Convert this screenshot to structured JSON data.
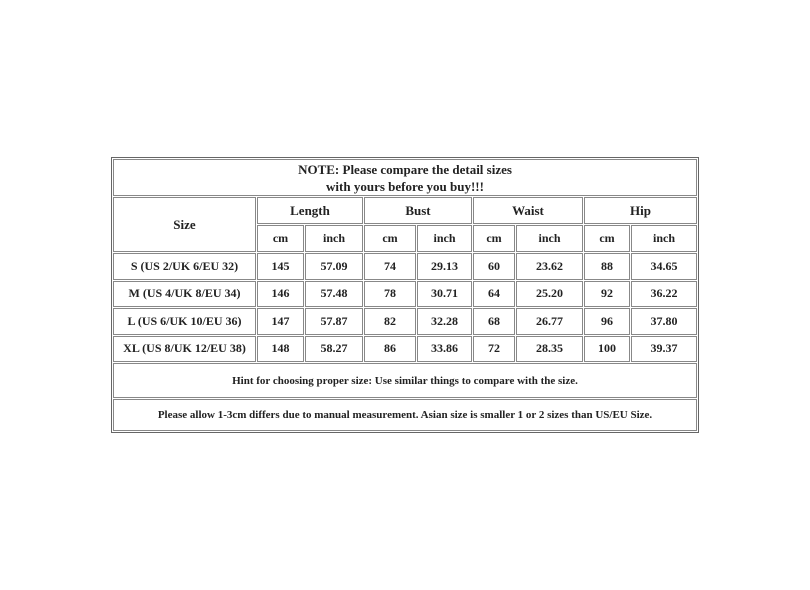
{
  "note": {
    "line1": "NOTE: Please compare the detail sizes",
    "line2": "with yours before you buy!!!"
  },
  "header": {
    "size": "Size",
    "groups": [
      "Length",
      "Bust",
      "Waist",
      "Hip"
    ],
    "units": [
      "cm",
      "inch",
      "cm",
      "inch",
      "cm",
      "inch",
      "cm",
      "inch"
    ]
  },
  "rows": [
    {
      "size": "S (US 2/UK 6/EU 32)",
      "values": [
        "145",
        "57.09",
        "74",
        "29.13",
        "60",
        "23.62",
        "88",
        "34.65"
      ]
    },
    {
      "size": "M  (US 4/UK 8/EU 34)",
      "values": [
        "146",
        "57.48",
        "78",
        "30.71",
        "64",
        "25.20",
        "92",
        "36.22"
      ]
    },
    {
      "size": "L (US 6/UK 10/EU 36)",
      "values": [
        "147",
        "57.87",
        "82",
        "32.28",
        "68",
        "26.77",
        "96",
        "37.80"
      ]
    },
    {
      "size": "XL (US 8/UK 12/EU 38)",
      "values": [
        "148",
        "58.27",
        "86",
        "33.86",
        "72",
        "28.35",
        "100",
        "39.37"
      ]
    }
  ],
  "hint": "Hint for choosing proper size: Use similar things to compare with the size.",
  "allow": "Please allow 1-3cm differs due to manual measurement. Asian size is smaller 1 or 2 sizes than US/EU Size."
}
